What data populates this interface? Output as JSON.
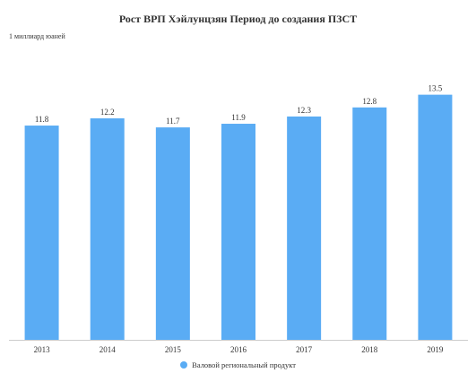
{
  "chart_data": {
    "type": "bar",
    "title": "Рост ВРП Хэйлунцзян Период до создания ПЗСТ",
    "unit_label": "1 миллиард юаней",
    "categories": [
      "2013",
      "2014",
      "2015",
      "2016",
      "2017",
      "2018",
      "2019"
    ],
    "series": [
      {
        "name": "Валовой региональный продукт",
        "values": [
          11.8,
          12.2,
          11.7,
          11.9,
          12.3,
          12.8,
          13.5
        ]
      }
    ],
    "data_labels": [
      "11.8",
      "12.2",
      "11.7",
      "11.9",
      "12.3",
      "12.8",
      "13.5"
    ],
    "ylim": [
      0,
      16
    ],
    "grid": false,
    "legend_position": "bottom",
    "bar_color": "#5aacf4"
  }
}
